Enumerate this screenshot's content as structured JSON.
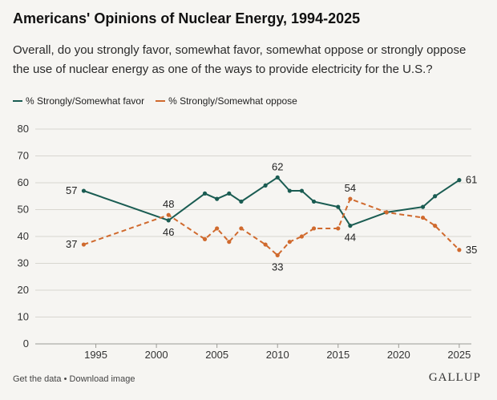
{
  "title": "Americans' Opinions of Nuclear Energy, 1994-2025",
  "subtitle": "Overall, do you strongly favor, somewhat favor, somewhat oppose or strongly oppose the use of nuclear energy as one of the ways to provide electricity for the U.S.?",
  "legend": {
    "favor": "% Strongly/Somewhat favor",
    "oppose": "% Strongly/Somewhat oppose"
  },
  "footer": {
    "get_data": "Get the data",
    "separator": " • ",
    "download": "Download image"
  },
  "brand": "GALLUP",
  "colors": {
    "favor": "#1a5c52",
    "oppose": "#d06a2e",
    "grid": "#d8d6d0",
    "background": "#f6f5f2"
  },
  "chart_data": {
    "type": "line",
    "title": "Americans' Opinions of Nuclear Energy, 1994-2025",
    "xlabel": "",
    "ylabel": "",
    "xlim": [
      1990,
      2026
    ],
    "ylim": [
      0,
      80
    ],
    "xticks": [
      1995,
      2000,
      2005,
      2010,
      2015,
      2020,
      2025
    ],
    "yticks": [
      0,
      10,
      20,
      30,
      40,
      50,
      60,
      70,
      80
    ],
    "grid": "horizontal",
    "legend_position": "top-left",
    "series": [
      {
        "name": "% Strongly/Somewhat favor",
        "style": "solid",
        "x": [
          1994,
          2001,
          2004,
          2005,
          2006,
          2007,
          2009,
          2010,
          2011,
          2012,
          2013,
          2015,
          2016,
          2019,
          2022,
          2023,
          2025
        ],
        "y": [
          57,
          46,
          56,
          54,
          56,
          53,
          59,
          62,
          57,
          57,
          53,
          51,
          44,
          49,
          51,
          55,
          61
        ],
        "labels": {
          "1994": "57",
          "2001": "46",
          "2010": "62",
          "2016": "44",
          "2025": "61"
        }
      },
      {
        "name": "% Strongly/Somewhat oppose",
        "style": "dashed",
        "x": [
          1994,
          2001,
          2004,
          2005,
          2006,
          2007,
          2009,
          2010,
          2011,
          2012,
          2013,
          2015,
          2016,
          2019,
          2022,
          2023,
          2025
        ],
        "y": [
          37,
          48,
          39,
          43,
          38,
          43,
          37,
          33,
          38,
          40,
          43,
          43,
          54,
          49,
          47,
          44,
          35
        ],
        "labels": {
          "1994": "37",
          "2001": "48",
          "2010": "33",
          "2016": "54",
          "2025": "35"
        }
      }
    ]
  }
}
